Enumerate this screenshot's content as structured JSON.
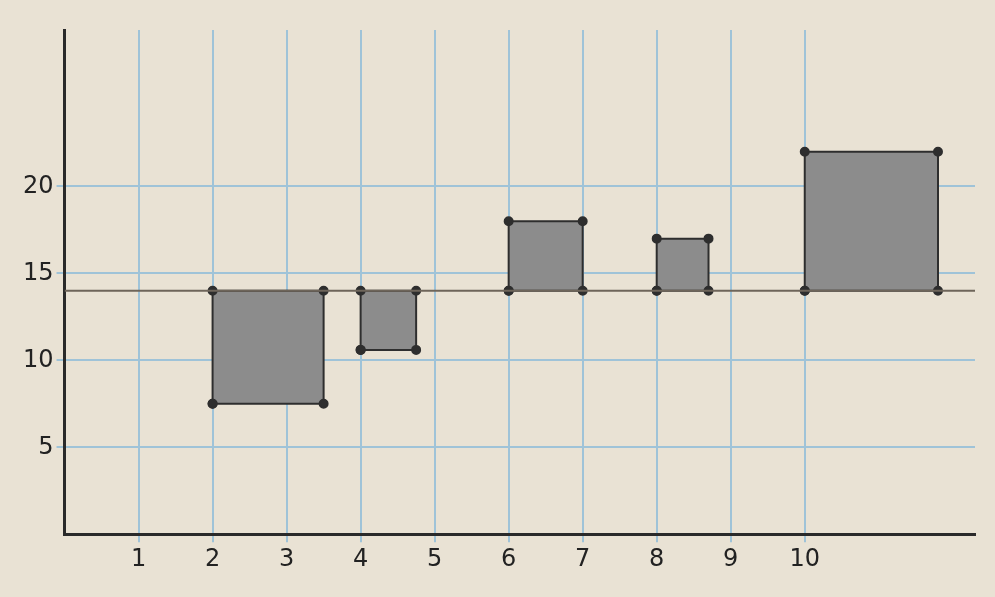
{
  "chart_data": {
    "type": "rectangle",
    "rects": [
      {
        "x": [
          2,
          3.5
        ],
        "y": [
          7.5,
          14
        ]
      },
      {
        "x": [
          4,
          4.75
        ],
        "y": [
          10.6,
          14
        ]
      },
      {
        "x": [
          6,
          7
        ],
        "y": [
          14,
          18
        ]
      },
      {
        "x": [
          8,
          8.7
        ],
        "y": [
          14,
          17
        ]
      },
      {
        "x": [
          10,
          11.8
        ],
        "y": [
          14,
          22
        ]
      }
    ],
    "reference_line": 14,
    "xlim": [
      0,
      12.3
    ],
    "ylim": [
      0,
      29
    ],
    "xticks": [
      1,
      2,
      3,
      4,
      5,
      6,
      7,
      8,
      9,
      10
    ],
    "yticks": [
      5,
      10,
      15,
      20
    ],
    "grid": true,
    "color": "#8c8c8c"
  }
}
